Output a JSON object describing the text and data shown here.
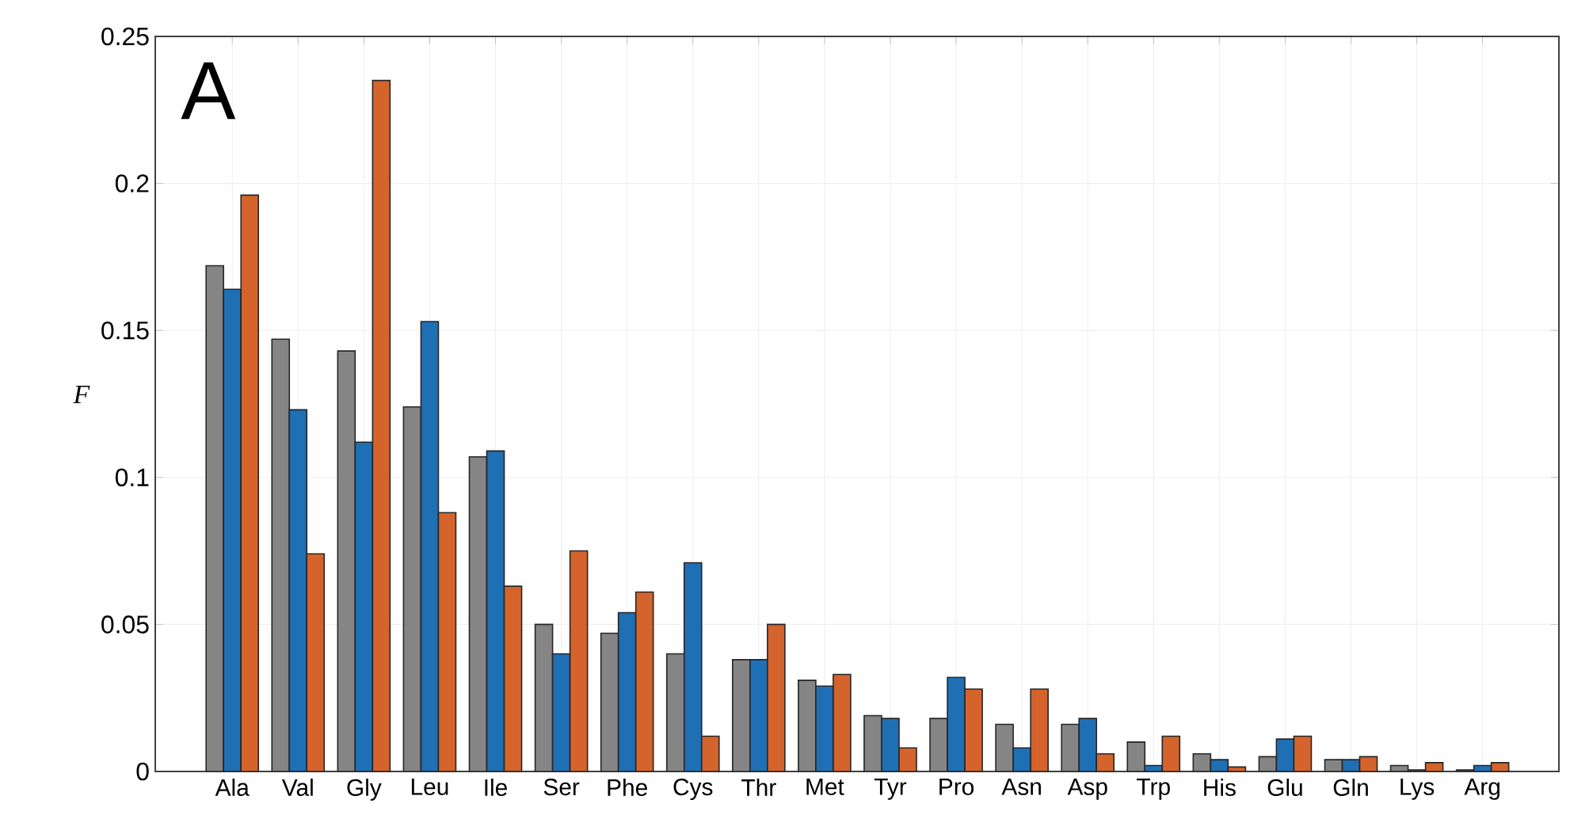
{
  "chart_data": {
    "type": "bar",
    "ylabel": "F",
    "annotations": [
      "A"
    ],
    "categories": [
      "Ala",
      "Val",
      "Gly",
      "Leu",
      "Ile",
      "Ser",
      "Phe",
      "Cys",
      "Thr",
      "Met",
      "Tyr",
      "Pro",
      "Asn",
      "Asp",
      "Trp",
      "His",
      "Glu",
      "Gln",
      "Lys",
      "Arg"
    ],
    "series": [
      {
        "color": "#858585",
        "values": [
          0.172,
          0.147,
          0.143,
          0.124,
          0.107,
          0.05,
          0.047,
          0.04,
          0.038,
          0.031,
          0.019,
          0.018,
          0.016,
          0.016,
          0.01,
          0.006,
          0.005,
          0.004,
          0.002,
          0.0005
        ]
      },
      {
        "color": "#1f6fb5",
        "values": [
          0.164,
          0.123,
          0.112,
          0.153,
          0.109,
          0.04,
          0.054,
          0.071,
          0.038,
          0.029,
          0.018,
          0.032,
          0.008,
          0.018,
          0.002,
          0.004,
          0.011,
          0.004,
          0.0005,
          0.002
        ]
      },
      {
        "color": "#d4642c",
        "values": [
          0.196,
          0.074,
          0.235,
          0.088,
          0.063,
          0.075,
          0.061,
          0.012,
          0.05,
          0.033,
          0.008,
          0.028,
          0.028,
          0.006,
          0.012,
          0.0015,
          0.012,
          0.005,
          0.003,
          0.003
        ]
      }
    ],
    "ylim": [
      0,
      0.25
    ],
    "yticks": [
      0,
      0.05,
      0.1,
      0.15,
      0.2,
      0.25
    ],
    "grid": true
  }
}
